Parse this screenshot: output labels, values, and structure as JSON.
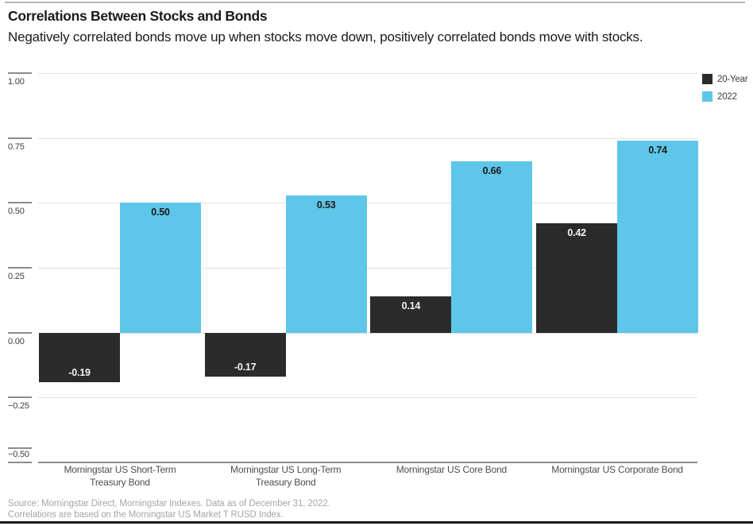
{
  "header": {
    "title": "Correlations Between Stocks and Bonds",
    "subtitle": "Negatively correlated bonds move up when stocks move down, positively correlated bonds move with stocks."
  },
  "chart_data": {
    "type": "bar",
    "title": "Correlations Between Stocks and Bonds",
    "categories": [
      [
        "Morningstar US Short-Term",
        "Treasury Bond"
      ],
      [
        "Morningstar US Long-Term",
        "Treasury Bond"
      ],
      [
        "Morningstar US Core Bond"
      ],
      [
        "Morningstar US Corporate Bond"
      ]
    ],
    "series": [
      {
        "name": "20-Year",
        "color": "#2b2b2b",
        "values": [
          -0.19,
          -0.17,
          0.14,
          0.42
        ],
        "labels": [
          "-0.19",
          "-0.17",
          "0.14",
          "0.42"
        ],
        "value_label_color": "#f2f2f2"
      },
      {
        "name": "2022",
        "color": "#5ec6e8",
        "values": [
          0.5,
          0.53,
          0.66,
          0.74
        ],
        "labels": [
          "0.50",
          "0.53",
          "0.66",
          "0.74"
        ],
        "value_label_color": "#1a1a1a"
      }
    ],
    "ylim": [
      -0.5,
      1.0
    ],
    "yticks": [
      1.0,
      0.75,
      0.5,
      0.25,
      0.0,
      -0.25,
      -0.5
    ],
    "ytick_labels": [
      "1.00",
      "0.75",
      "0.50",
      "0.25",
      "0.00",
      "−0.25",
      "−0.50"
    ],
    "grid": true,
    "legend_position": "top-right",
    "colors": {
      "gridline": "#e2e2e2",
      "axis": "#8c8c8c",
      "value_on_dark": "#f2f2f2",
      "value_on_blue": "#1a1a1a"
    }
  },
  "footer": {
    "line1": "Source: Morningstar Direct, Morningstar Indexes. Data as of December 31, 2022.",
    "line2": "Correlations are based on the Morningstar US Market T RUSD Index."
  }
}
